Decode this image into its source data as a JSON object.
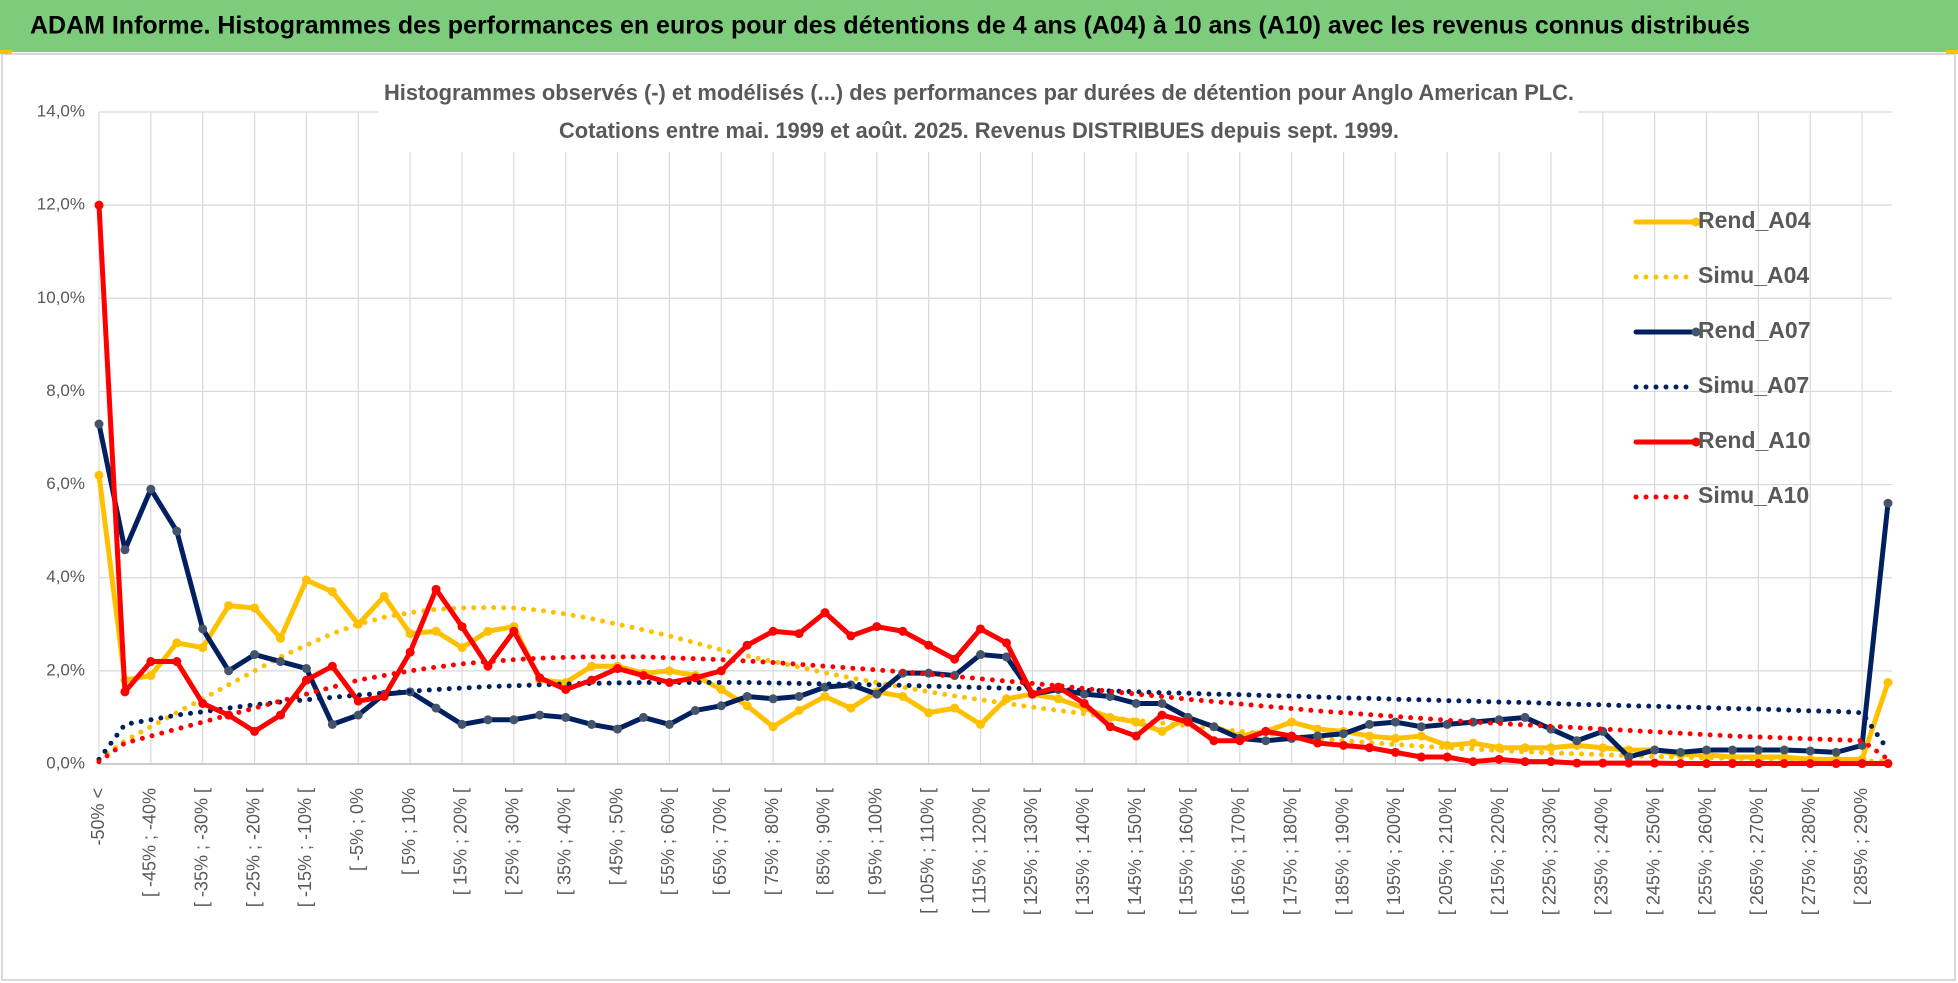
{
  "header": {
    "title": "ADAM Informe. Histogrammes des performances en euros pour des détentions de 4 ans (A04) à 10 ans (A10) avec les revenus connus distribués"
  },
  "chart_data": {
    "type": "line",
    "title": "Histogrammes observés (-) et modélisés (...) des performances par durées de détention pour Anglo American PLC.",
    "subtitle": "Cotations entre mai. 1999 et août. 2025. Revenus DISTRIBUES depuis sept. 1999.",
    "categories": [
      "-50% <",
      null,
      "[ -45% ; -40%",
      null,
      "[ -35% ; -30% [",
      null,
      "[ -25% ; -20% [",
      null,
      "[ -15% ; -10% [",
      null,
      "[ -5% ; 0%",
      null,
      "[ 5% ; 10%",
      null,
      "[ 15% ; 20% [",
      null,
      "[ 25% ; 30% [",
      null,
      "[ 35% ; 40% [",
      null,
      "[ 45% ; 50%",
      null,
      "[ 55% ; 60% [",
      null,
      "[ 65% ; 70% [",
      null,
      "[ 75% ; 80% [",
      null,
      "[ 85% ; 90% [",
      null,
      "[ 95% ; 100%",
      null,
      "[ 105% ; 110% [",
      null,
      "[ 115% ; 120% [",
      null,
      "[ 125% ; 130% [",
      null,
      "[ 135% ; 140% [",
      null,
      "[ 145% ; 150% [",
      null,
      "[ 155% ; 160% [",
      null,
      "[ 165% ; 170% [",
      null,
      "[ 175% ; 180% [",
      null,
      "[ 185% ; 190% [",
      null,
      "[ 195% ; 200% [",
      null,
      "[ 205% ; 210% [",
      null,
      "[ 215% ; 220% [",
      null,
      "[ 225% ; 230% [",
      null,
      "[ 235% ; 240% [",
      null,
      "[ 245% ; 250% [",
      null,
      "[ 255% ; 260% [",
      null,
      "[ 265% ; 270% [",
      null,
      "[ 275% ; 280% [",
      null,
      "[ 285% ; 290%",
      null
    ],
    "ylim": [
      0,
      14
    ],
    "yticks": [
      {
        "value": 0,
        "label": "0,0%"
      },
      {
        "value": 2,
        "label": "2,0%"
      },
      {
        "value": 4,
        "label": "4,0%"
      },
      {
        "value": 6,
        "label": "6,0%"
      },
      {
        "value": 8,
        "label": "8,0%"
      },
      {
        "value": 10,
        "label": "10,0%"
      },
      {
        "value": 12,
        "label": "12,0%"
      },
      {
        "value": 14,
        "label": "14,0%"
      }
    ],
    "grid": true,
    "legend": "right",
    "series": [
      {
        "name": "Rend_A04",
        "color": "#ffc000",
        "line_style": "solid",
        "markers": true,
        "values": [
          6.2,
          1.8,
          1.9,
          2.6,
          2.5,
          3.4,
          3.35,
          2.7,
          3.95,
          3.7,
          3.0,
          3.6,
          2.8,
          2.85,
          2.5,
          2.85,
          2.95,
          1.8,
          1.75,
          2.1,
          2.1,
          1.95,
          2.0,
          1.9,
          1.6,
          1.25,
          0.8,
          1.15,
          1.45,
          1.2,
          1.55,
          1.45,
          1.1,
          1.2,
          0.85,
          1.4,
          1.5,
          1.4,
          1.2,
          1.0,
          0.9,
          0.7,
          1.0,
          0.8,
          0.6,
          0.7,
          0.9,
          0.75,
          0.7,
          0.6,
          0.55,
          0.6,
          0.4,
          0.45,
          0.35,
          0.35,
          0.35,
          0.4,
          0.35,
          0.3,
          0.3,
          0.2,
          0.2,
          0.15,
          0.15,
          0.15,
          0.1,
          0.1,
          0.1,
          1.75
        ]
      },
      {
        "name": "Simu_A04",
        "color": "#ffc000",
        "line_style": "dotted",
        "markers": false,
        "values": [
          0.1,
          0.5,
          0.8,
          1.1,
          1.4,
          1.7,
          2.0,
          2.3,
          2.55,
          2.8,
          3.0,
          3.15,
          3.25,
          3.32,
          3.35,
          3.36,
          3.35,
          3.3,
          3.22,
          3.12,
          3.0,
          2.88,
          2.75,
          2.6,
          2.45,
          2.32,
          2.2,
          2.08,
          1.96,
          1.85,
          1.75,
          1.65,
          1.55,
          1.46,
          1.38,
          1.3,
          1.22,
          1.15,
          1.08,
          1.0,
          0.94,
          0.88,
          0.82,
          0.76,
          0.7,
          0.65,
          0.6,
          0.55,
          0.5,
          0.46,
          0.42,
          0.38,
          0.35,
          0.32,
          0.29,
          0.26,
          0.24,
          0.22,
          0.2,
          0.18,
          0.16,
          0.15,
          0.13,
          0.12,
          0.11,
          0.1,
          0.09,
          0.08,
          0.07,
          0.05
        ]
      },
      {
        "name": "Rend_A07",
        "color": "#002060",
        "line_style": "solid",
        "markers": true,
        "values": [
          7.3,
          4.6,
          5.9,
          5.0,
          2.9,
          2.0,
          2.35,
          2.2,
          2.05,
          0.85,
          1.05,
          1.5,
          1.55,
          1.2,
          0.85,
          0.95,
          0.95,
          1.05,
          1.0,
          0.85,
          0.75,
          1.0,
          0.85,
          1.15,
          1.25,
          1.45,
          1.4,
          1.45,
          1.65,
          1.7,
          1.5,
          1.95,
          1.95,
          1.9,
          2.35,
          2.3,
          1.5,
          1.6,
          1.5,
          1.45,
          1.3,
          1.3,
          1.0,
          0.8,
          0.55,
          0.5,
          0.55,
          0.6,
          0.65,
          0.85,
          0.9,
          0.8,
          0.85,
          0.9,
          0.95,
          1.0,
          0.75,
          0.5,
          0.7,
          0.15,
          0.3,
          0.25,
          0.3,
          0.3,
          0.3,
          0.3,
          0.28,
          0.25,
          0.4,
          5.6
        ]
      },
      {
        "name": "Simu_A07",
        "color": "#002060",
        "line_style": "dotted",
        "markers": false,
        "values": [
          0.1,
          0.85,
          0.95,
          1.05,
          1.12,
          1.2,
          1.27,
          1.33,
          1.38,
          1.43,
          1.48,
          1.52,
          1.56,
          1.6,
          1.63,
          1.66,
          1.68,
          1.7,
          1.72,
          1.73,
          1.74,
          1.75,
          1.75,
          1.75,
          1.75,
          1.75,
          1.74,
          1.73,
          1.72,
          1.71,
          1.7,
          1.69,
          1.67,
          1.66,
          1.64,
          1.63,
          1.61,
          1.6,
          1.58,
          1.57,
          1.55,
          1.53,
          1.52,
          1.5,
          1.49,
          1.47,
          1.46,
          1.44,
          1.42,
          1.41,
          1.39,
          1.38,
          1.36,
          1.35,
          1.33,
          1.32,
          1.3,
          1.28,
          1.27,
          1.25,
          1.24,
          1.22,
          1.21,
          1.19,
          1.18,
          1.16,
          1.14,
          1.13,
          1.1,
          0.3
        ]
      },
      {
        "name": "Rend_A10",
        "color": "#ff0000",
        "line_style": "solid",
        "markers": true,
        "values": [
          12.0,
          1.55,
          2.2,
          2.2,
          1.3,
          1.05,
          0.7,
          1.05,
          1.8,
          2.1,
          1.35,
          1.45,
          2.4,
          3.75,
          2.95,
          2.1,
          2.85,
          1.85,
          1.6,
          1.8,
          2.05,
          1.9,
          1.75,
          1.85,
          2.0,
          2.55,
          2.85,
          2.8,
          3.25,
          2.75,
          2.95,
          2.85,
          2.55,
          2.25,
          2.9,
          2.6,
          1.5,
          1.65,
          1.3,
          0.8,
          0.6,
          1.05,
          0.9,
          0.5,
          0.5,
          0.7,
          0.6,
          0.45,
          0.4,
          0.35,
          0.25,
          0.15,
          0.15,
          0.05,
          0.1,
          0.05,
          0.05,
          0.02,
          0.02,
          0.02,
          0.02,
          0.01,
          0.01,
          0.01,
          0.01,
          0.01,
          0.01,
          0.01,
          0.01,
          0.01
        ]
      },
      {
        "name": "Simu_A10",
        "color": "#ff0000",
        "line_style": "dotted",
        "markers": false,
        "values": [
          0.05,
          0.45,
          0.6,
          0.75,
          0.9,
          1.05,
          1.2,
          1.35,
          1.5,
          1.65,
          1.8,
          1.9,
          2.0,
          2.08,
          2.15,
          2.2,
          2.24,
          2.27,
          2.29,
          2.3,
          2.3,
          2.3,
          2.28,
          2.26,
          2.24,
          2.21,
          2.18,
          2.14,
          2.1,
          2.06,
          2.02,
          1.98,
          1.93,
          1.88,
          1.83,
          1.78,
          1.73,
          1.68,
          1.62,
          1.56,
          1.5,
          1.45,
          1.39,
          1.34,
          1.29,
          1.24,
          1.19,
          1.14,
          1.1,
          1.06,
          1.02,
          0.98,
          0.94,
          0.9,
          0.87,
          0.84,
          0.81,
          0.78,
          0.75,
          0.72,
          0.69,
          0.66,
          0.63,
          0.6,
          0.58,
          0.56,
          0.54,
          0.52,
          0.5,
          0.1
        ]
      }
    ]
  }
}
